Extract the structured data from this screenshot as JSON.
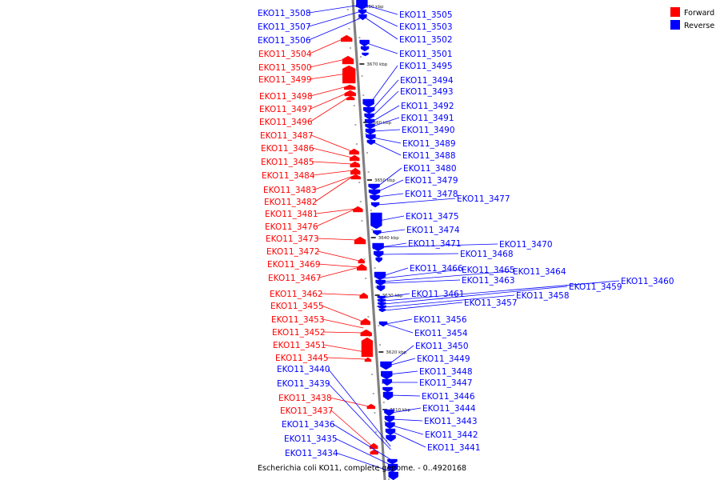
{
  "caption": "Escherichia coli KO11, complete genome. - 0..4920168",
  "legend": [
    {
      "label": "Forward",
      "color": "#ff0000"
    },
    {
      "label": "Reverse",
      "color": "#0000ff"
    }
  ],
  "colors": {
    "forward": "#ff0000",
    "reverse": "#0000ff",
    "axis": "#808080"
  },
  "ticks": [
    "3680 kbp",
    "3670 kbp",
    "3660 kbp",
    "3650 kbp",
    "3640 kbp",
    "3630 kbp",
    "3620 kbp",
    "3610 kbp"
  ],
  "forward_labels": [
    "EKO11_3504",
    "EKO11_3500",
    "EKO11_3499",
    "EKO11_3498",
    "EKO11_3497",
    "EKO11_3496",
    "EKO11_3487",
    "EKO11_3486",
    "EKO11_3485",
    "EKO11_3484",
    "EKO11_3483",
    "EKO11_3482",
    "EKO11_3481",
    "EKO11_3476",
    "EKO11_3473",
    "EKO11_3472",
    "EKO11_3469",
    "EKO11_3467",
    "EKO11_3462",
    "EKO11_3455",
    "EKO11_3453",
    "EKO11_3452",
    "EKO11_3451",
    "EKO11_3445",
    "EKO11_3438",
    "EKO11_3437"
  ],
  "reverse_labels": [
    "EKO11_3508",
    "EKO11_3507",
    "EKO11_3506",
    "EKO11_3505",
    "EKO11_3503",
    "EKO11_3502",
    "EKO11_3501",
    "EKO11_3495",
    "EKO11_3494",
    "EKO11_3493",
    "EKO11_3492",
    "EKO11_3491",
    "EKO11_3490",
    "EKO11_3489",
    "EKO11_3488",
    "EKO11_3480",
    "EKO11_3479",
    "EKO11_3478",
    "EKO11_3477",
    "EKO11_3475",
    "EKO11_3474",
    "EKO11_3471",
    "EKO11_3470",
    "EKO11_3468",
    "EKO11_3466",
    "EKO11_3465",
    "EKO11_3464",
    "EKO11_3463",
    "EKO11_3461",
    "EKO11_3460",
    "EKO11_3459",
    "EKO11_3458",
    "EKO11_3457",
    "EKO11_3456",
    "EKO11_3454",
    "EKO11_3450",
    "EKO11_3449",
    "EKO11_3448",
    "EKO11_3447",
    "EKO11_3446",
    "EKO11_3444",
    "EKO11_3443",
    "EKO11_3442",
    "EKO11_3441",
    "EKO11_3440",
    "EKO11_3439",
    "EKO11_3436",
    "EKO11_3435",
    "EKO11_3434"
  ]
}
